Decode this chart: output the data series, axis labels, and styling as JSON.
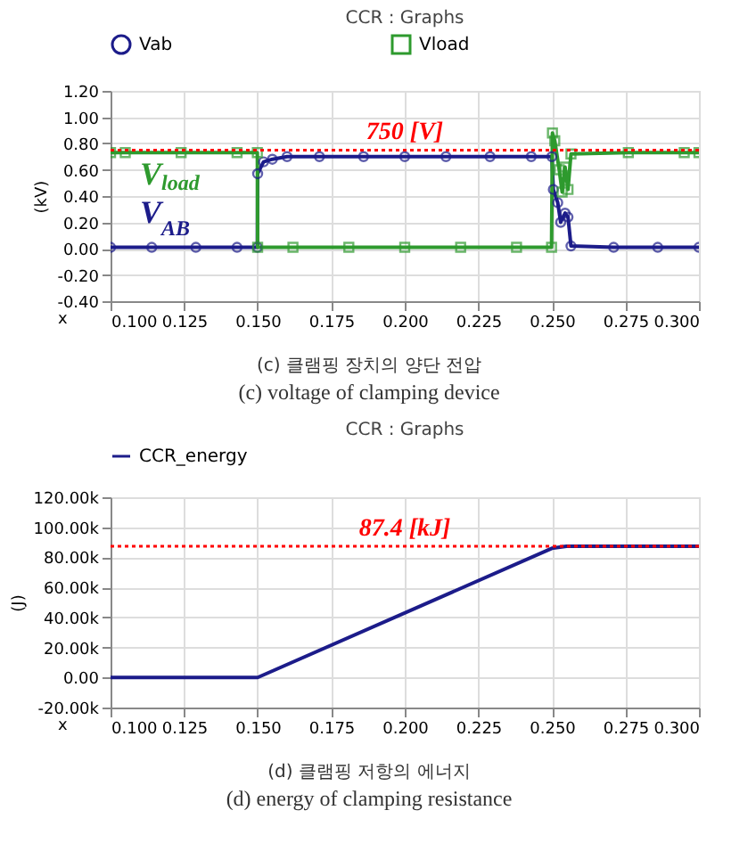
{
  "chart_data": [
    {
      "type": "line",
      "title": "CCR : Graphs",
      "xlabel": "x",
      "ylabel": "(kV)",
      "legend": "top",
      "grid": true,
      "xlim": [
        0.1,
        0.3
      ],
      "xticks": [
        {
          "value": 0.1,
          "label": "0.100"
        },
        {
          "value": 0.125,
          "label": "0.125"
        },
        {
          "value": 0.15,
          "label": "0.150"
        },
        {
          "value": 0.175,
          "label": "0.175"
        },
        {
          "value": 0.2,
          "label": "0.200"
        },
        {
          "value": 0.225,
          "label": "0.225"
        },
        {
          "value": 0.25,
          "label": "0.250"
        },
        {
          "value": 0.275,
          "label": "0.275"
        },
        {
          "value": 0.3,
          "label": "0.300"
        }
      ],
      "ylim": [
        -0.4,
        1.2
      ],
      "yticks": [
        {
          "value": -0.4,
          "label": "-0.40"
        },
        {
          "value": -0.2,
          "label": "-0.20"
        },
        {
          "value": 0,
          "label": "0.00"
        },
        {
          "value": 0.2,
          "label": "0.20"
        },
        {
          "value": 0.4,
          "label": "0.40"
        },
        {
          "value": 0.6,
          "label": "0.60"
        },
        {
          "value": 0.8,
          "label": "0.80"
        },
        {
          "value": 1.0,
          "label": "1.00"
        },
        {
          "value": 1.2,
          "label": "1.20"
        }
      ],
      "series": [
        {
          "name": "Vab",
          "color": "#1c1c8a",
          "marker": "circle",
          "x": [
            0.1,
            0.114,
            0.129,
            0.143,
            0.1499,
            0.15,
            0.152,
            0.155,
            0.16,
            0.171,
            0.186,
            0.2,
            0.214,
            0.229,
            0.243,
            0.25,
            0.2505,
            0.252,
            0.253,
            0.2545,
            0.2555,
            0.2565,
            0.271,
            0.286,
            0.3
          ],
          "values": [
            0.01,
            0.01,
            0.01,
            0.01,
            0.01,
            0.57,
            0.66,
            0.68,
            0.7,
            0.7,
            0.7,
            0.7,
            0.7,
            0.7,
            0.7,
            0.7,
            0.45,
            0.35,
            0.2,
            0.27,
            0.24,
            0.02,
            0.01,
            0.01,
            0.01
          ]
        },
        {
          "name": "Vload",
          "color": "#2e9a2e",
          "marker": "square",
          "x": [
            0.1,
            0.105,
            0.124,
            0.143,
            0.1499,
            0.15,
            0.162,
            0.181,
            0.2,
            0.219,
            0.238,
            0.2499,
            0.2502,
            0.251,
            0.2525,
            0.2535,
            0.2545,
            0.2555,
            0.2565,
            0.276,
            0.295,
            0.3
          ],
          "values": [
            0.73,
            0.73,
            0.73,
            0.73,
            0.73,
            0.01,
            0.01,
            0.01,
            0.01,
            0.01,
            0.01,
            0.01,
            0.88,
            0.82,
            0.6,
            0.43,
            0.62,
            0.45,
            0.72,
            0.73,
            0.73,
            0.73
          ]
        }
      ],
      "ref_lines": [
        {
          "axis": "y",
          "value": 0.75,
          "label": "750 [V]",
          "color": "#ff0000",
          "line_style": "dotted"
        }
      ],
      "annotations": [
        {
          "text": "V$_{load}$",
          "x": 0.11,
          "y": 0.73
        },
        {
          "text": "V$_{AB}$",
          "x": 0.11,
          "y": 0.01
        },
        "(c) 클램핑 장치의 양단 전압",
        "(c) voltage of clamping device"
      ]
    },
    {
      "type": "line",
      "title": "CCR : Graphs",
      "xlabel": "x",
      "ylabel": "(J)",
      "legend": "top",
      "grid": true,
      "xlim": [
        0.1,
        0.3
      ],
      "xticks": [
        {
          "value": 0.1,
          "label": "0.100"
        },
        {
          "value": 0.125,
          "label": "0.125"
        },
        {
          "value": 0.15,
          "label": "0.150"
        },
        {
          "value": 0.175,
          "label": "0.175"
        },
        {
          "value": 0.2,
          "label": "0.200"
        },
        {
          "value": 0.225,
          "label": "0.225"
        },
        {
          "value": 0.25,
          "label": "0.250"
        },
        {
          "value": 0.275,
          "label": "0.275"
        },
        {
          "value": 0.3,
          "label": "0.300"
        }
      ],
      "ylim": [
        -20000,
        120000
      ],
      "yticks": [
        {
          "value": -20000,
          "label": "-20.00k"
        },
        {
          "value": 0,
          "label": "0.00"
        },
        {
          "value": 20000,
          "label": "20.00k"
        },
        {
          "value": 40000,
          "label": "40.00k"
        },
        {
          "value": 60000,
          "label": "60.00k"
        },
        {
          "value": 80000,
          "label": "80.00k"
        },
        {
          "value": 100000,
          "label": "100.00k"
        },
        {
          "value": 120000,
          "label": "120.00k"
        }
      ],
      "series": [
        {
          "name": "CCR_energy",
          "color": "#1c1c8a",
          "x": [
            0.1,
            0.15,
            0.25,
            0.255,
            0.3
          ],
          "values": [
            0,
            0,
            86000,
            87400,
            87400
          ]
        }
      ],
      "ref_lines": [
        {
          "axis": "y",
          "value": 87400,
          "label": "87.4 [kJ]",
          "color": "#ff0000",
          "line_style": "dotted"
        }
      ],
      "annotations": [
        "(d) 클램핑 저항의 에너지",
        "(d) energy of clamping resistance"
      ]
    }
  ]
}
